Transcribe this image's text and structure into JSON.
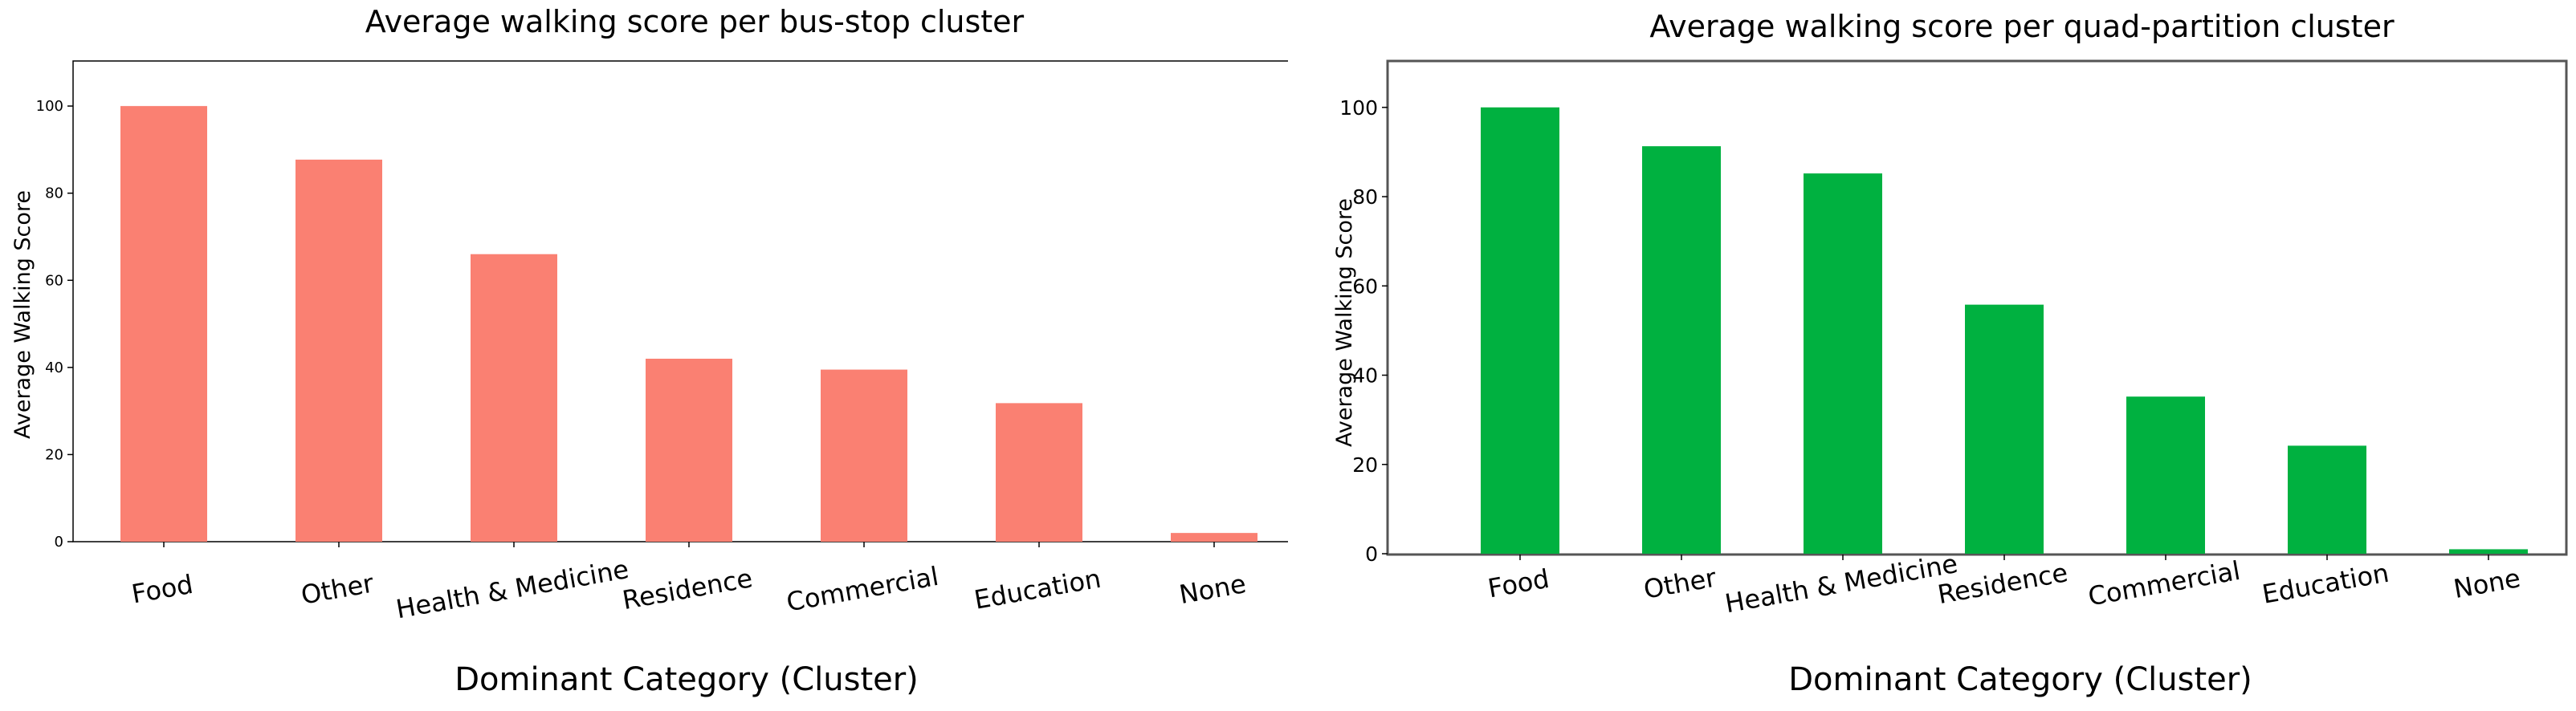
{
  "colors": {
    "left_bar": "#fa8072",
    "right_bar": "#00b140"
  },
  "chart_data": [
    {
      "type": "bar",
      "title": "Average walking score per bus-stop cluster",
      "xlabel": "Dominant Category (Cluster)",
      "ylabel": "Average Walking Score",
      "categories": [
        "Food",
        "Other",
        "Health & Medicine",
        "Residence",
        "Commercial",
        "Education",
        "None"
      ],
      "values": [
        100,
        87.7,
        66,
        42,
        39.5,
        31.8,
        2
      ],
      "yticks": [
        0,
        20,
        40,
        60,
        80,
        100
      ],
      "ylim": [
        0,
        105
      ],
      "grid": false
    },
    {
      "type": "bar",
      "title": "Average walking score per quad-partition cluster",
      "xlabel": "Dominant Category (Cluster)",
      "ylabel": "Average Walking Score",
      "categories": [
        "Food",
        "Other",
        "Health & Medicine",
        "Residence",
        "Commercial",
        "Education",
        "None"
      ],
      "values": [
        100,
        91.3,
        85.2,
        55.8,
        35.2,
        24.2,
        1
      ],
      "yticks": [
        0,
        20,
        40,
        60,
        80,
        100
      ],
      "ylim": [
        0,
        105
      ],
      "grid": false
    }
  ]
}
